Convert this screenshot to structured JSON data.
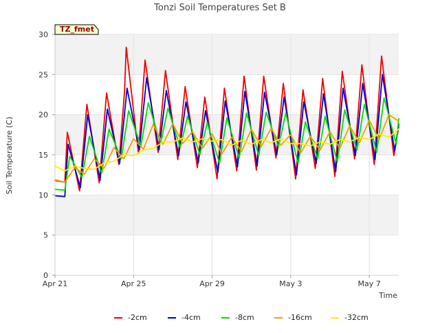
{
  "chart_data": {
    "type": "line",
    "title": "Tonzi Soil Temperatures Set B",
    "xlabel": "Time",
    "ylabel": "Soil Temperature (C)",
    "ylim": [
      0,
      30
    ],
    "xlim": [
      "2021-04-21",
      "2021-05-08 12:00"
    ],
    "x_ticks": [
      "2021-04-21",
      "2021-04-25",
      "2021-04-29",
      "2021-05-03",
      "2021-05-07"
    ],
    "x_tick_labels": [
      "Apr 21",
      "Apr 25",
      "Apr 29",
      "May 3",
      "May 7"
    ],
    "y_ticks": [
      0,
      5,
      10,
      15,
      20,
      25,
      30
    ],
    "y_tick_labels": [
      "0",
      "5",
      "10",
      "15",
      "20",
      "25",
      "30"
    ],
    "grid": true,
    "background_bands": true,
    "legend_placement": "bottom",
    "site_badge": "TZ_fmet",
    "x": [
      "2021-04-21 06:00",
      "2021-04-22 06:00",
      "2021-04-23 06:00",
      "2021-04-24 06:00",
      "2021-04-25 06:00",
      "2021-04-26 06:00",
      "2021-04-27 06:00",
      "2021-04-28 06:00",
      "2021-04-29 06:00",
      "2021-04-30 06:00",
      "2021-05-01 06:00",
      "2021-05-02 06:00",
      "2021-05-03 06:00",
      "2021-05-04 06:00",
      "2021-05-05 06:00",
      "2021-05-06 06:00",
      "2021-05-07 06:00",
      "2021-05-08 06:00"
    ],
    "series": [
      {
        "name": "-2cm",
        "color": "#ee0000",
        "x": [
          "2021-04-21 00:00",
          "2021-04-21 12:00",
          "2021-04-21 15:00",
          "2021-04-22 06:00",
          "2021-04-22 15:00",
          "2021-04-23 06:00",
          "2021-04-23 15:00",
          "2021-04-24 06:00",
          "2021-04-24 13:00",
          "2021-04-24 15:00",
          "2021-04-25 06:00",
          "2021-04-25 14:00",
          "2021-04-26 06:00",
          "2021-04-26 15:00",
          "2021-04-27 06:00",
          "2021-04-27 15:00",
          "2021-04-28 06:00",
          "2021-04-28 15:00",
          "2021-04-29 06:00",
          "2021-04-29 15:00",
          "2021-04-30 06:00",
          "2021-04-30 15:00",
          "2021-05-01 06:00",
          "2021-05-01 15:00",
          "2021-05-02 06:00",
          "2021-05-02 15:00",
          "2021-05-03 06:00",
          "2021-05-03 15:00",
          "2021-05-04 06:00",
          "2021-05-04 15:00",
          "2021-05-05 06:00",
          "2021-05-05 15:00",
          "2021-05-06 06:00",
          "2021-05-06 15:00",
          "2021-05-07 06:00",
          "2021-05-07 15:00",
          "2021-05-08 06:00",
          "2021-05-08 12:00"
        ],
        "y": [
          11.8,
          11.6,
          17.8,
          10.5,
          21.3,
          11.5,
          22.7,
          13.8,
          23.0,
          28.4,
          15.2,
          26.8,
          15.3,
          25.5,
          14.4,
          23.5,
          13.4,
          22.2,
          12.0,
          23.3,
          13.0,
          24.8,
          13.1,
          24.8,
          14.6,
          23.9,
          12.0,
          23.1,
          13.3,
          24.5,
          12.3,
          25.4,
          14.5,
          26.2,
          13.8,
          27.3,
          14.9,
          18.5
        ]
      },
      {
        "name": "-4cm",
        "color": "#0000cc",
        "x": [
          "2021-04-21 00:00",
          "2021-04-21 12:00",
          "2021-04-21 16:00",
          "2021-04-22 07:00",
          "2021-04-22 16:00",
          "2021-04-23 07:00",
          "2021-04-23 16:00",
          "2021-04-24 07:00",
          "2021-04-24 16:00",
          "2021-04-25 07:00",
          "2021-04-25 16:00",
          "2021-04-26 07:00",
          "2021-04-26 16:00",
          "2021-04-27 07:00",
          "2021-04-27 16:00",
          "2021-04-28 07:00",
          "2021-04-28 16:00",
          "2021-04-29 07:00",
          "2021-04-29 16:00",
          "2021-04-30 07:00",
          "2021-04-30 16:00",
          "2021-05-01 07:00",
          "2021-05-01 16:00",
          "2021-05-02 07:00",
          "2021-05-02 16:00",
          "2021-05-03 07:00",
          "2021-05-03 16:00",
          "2021-05-04 07:00",
          "2021-05-04 16:00",
          "2021-05-05 07:00",
          "2021-05-05 16:00",
          "2021-05-06 07:00",
          "2021-05-06 16:00",
          "2021-05-07 07:00",
          "2021-05-07 16:00",
          "2021-05-08 07:00",
          "2021-05-08 12:00"
        ],
        "y": [
          9.9,
          9.8,
          16.3,
          10.9,
          20.0,
          11.8,
          20.7,
          13.9,
          23.3,
          15.6,
          24.6,
          15.6,
          23.0,
          14.9,
          21.6,
          14.0,
          20.5,
          12.8,
          21.7,
          13.5,
          22.9,
          13.6,
          22.8,
          15.0,
          22.2,
          12.5,
          21.6,
          13.9,
          22.6,
          12.9,
          23.3,
          14.9,
          23.9,
          14.4,
          25.0,
          15.5,
          18.8
        ]
      },
      {
        "name": "-8cm",
        "color": "#00dd00",
        "x": [
          "2021-04-21 00:00",
          "2021-04-21 12:00",
          "2021-04-21 18:00",
          "2021-04-22 09:00",
          "2021-04-22 18:00",
          "2021-04-23 09:00",
          "2021-04-23 18:00",
          "2021-04-24 09:00",
          "2021-04-24 18:00",
          "2021-04-25 09:00",
          "2021-04-25 18:00",
          "2021-04-26 09:00",
          "2021-04-26 18:00",
          "2021-04-27 09:00",
          "2021-04-27 18:00",
          "2021-04-28 09:00",
          "2021-04-28 18:00",
          "2021-04-29 09:00",
          "2021-04-29 18:00",
          "2021-04-30 09:00",
          "2021-04-30 18:00",
          "2021-05-01 09:00",
          "2021-05-01 18:00",
          "2021-05-02 09:00",
          "2021-05-02 18:00",
          "2021-05-03 09:00",
          "2021-05-03 18:00",
          "2021-05-04 09:00",
          "2021-05-04 18:00",
          "2021-05-05 09:00",
          "2021-05-05 18:00",
          "2021-05-06 09:00",
          "2021-05-06 18:00",
          "2021-05-07 09:00",
          "2021-05-07 18:00",
          "2021-05-08 09:00",
          "2021-05-08 12:00"
        ],
        "y": [
          10.7,
          10.6,
          14.8,
          12.2,
          17.3,
          12.7,
          18.2,
          14.5,
          20.5,
          16.1,
          21.5,
          16.4,
          20.8,
          15.9,
          19.8,
          15.0,
          19.0,
          13.9,
          19.6,
          14.6,
          20.2,
          14.9,
          20.3,
          16.0,
          20.2,
          13.9,
          19.1,
          14.5,
          19.8,
          14.1,
          20.6,
          15.6,
          21.3,
          15.3,
          22.1,
          16.3,
          19.5
        ]
      },
      {
        "name": "-16cm",
        "color": "#f0a000",
        "x": [
          "2021-04-21 00:00",
          "2021-04-21 12:00",
          "2021-04-22 00:00",
          "2021-04-22 12:00",
          "2021-04-23 00:00",
          "2021-04-23 12:00",
          "2021-04-24 00:00",
          "2021-04-24 12:00",
          "2021-04-25 00:00",
          "2021-04-25 12:00",
          "2021-04-26 00:00",
          "2021-04-26 12:00",
          "2021-04-27 00:00",
          "2021-04-27 12:00",
          "2021-04-28 00:00",
          "2021-04-28 12:00",
          "2021-04-29 00:00",
          "2021-04-29 12:00",
          "2021-04-30 00:00",
          "2021-04-30 12:00",
          "2021-05-01 00:00",
          "2021-05-01 12:00",
          "2021-05-02 00:00",
          "2021-05-02 12:00",
          "2021-05-03 00:00",
          "2021-05-03 12:00",
          "2021-05-04 00:00",
          "2021-05-04 12:00",
          "2021-05-05 00:00",
          "2021-05-05 12:00",
          "2021-05-06 00:00",
          "2021-05-06 12:00",
          "2021-05-07 00:00",
          "2021-05-07 12:00",
          "2021-05-08 00:00",
          "2021-05-08 12:00"
        ],
        "y": [
          11.9,
          11.6,
          13.4,
          12.6,
          14.5,
          13.3,
          15.9,
          14.5,
          17.0,
          15.7,
          18.8,
          16.3,
          18.9,
          16.4,
          17.9,
          15.8,
          17.6,
          15.1,
          17.2,
          15.4,
          18.2,
          16.0,
          18.3,
          16.2,
          17.5,
          15.2,
          17.3,
          15.6,
          17.9,
          15.8,
          18.6,
          16.5,
          19.3,
          16.9,
          20.0,
          19.2
        ]
      },
      {
        "name": "-32cm",
        "color": "#ffee00",
        "x": [
          "2021-04-21 00:00",
          "2021-04-21 12:00",
          "2021-04-22 00:00",
          "2021-04-22 12:00",
          "2021-04-23 00:00",
          "2021-04-23 12:00",
          "2021-04-24 00:00",
          "2021-04-24 12:00",
          "2021-04-25 00:00",
          "2021-04-25 12:00",
          "2021-04-26 00:00",
          "2021-04-26 12:00",
          "2021-04-27 00:00",
          "2021-04-27 12:00",
          "2021-04-28 00:00",
          "2021-04-28 12:00",
          "2021-04-29 00:00",
          "2021-04-29 12:00",
          "2021-04-30 00:00",
          "2021-04-30 12:00",
          "2021-05-01 00:00",
          "2021-05-01 12:00",
          "2021-05-02 00:00",
          "2021-05-02 12:00",
          "2021-05-03 00:00",
          "2021-05-03 12:00",
          "2021-05-04 00:00",
          "2021-05-04 12:00",
          "2021-05-05 00:00",
          "2021-05-05 12:00",
          "2021-05-06 00:00",
          "2021-05-06 12:00",
          "2021-05-07 00:00",
          "2021-05-07 12:00",
          "2021-05-08 00:00",
          "2021-05-08 12:00"
        ],
        "y": [
          13.6,
          13.0,
          13.6,
          13.3,
          13.2,
          14.0,
          14.2,
          15.0,
          14.9,
          15.6,
          15.8,
          16.6,
          16.6,
          17.1,
          16.6,
          17.0,
          16.7,
          16.9,
          16.2,
          16.8,
          16.3,
          16.9,
          16.5,
          17.0,
          16.4,
          16.4,
          16.1,
          16.6,
          16.3,
          16.9,
          16.6,
          17.2,
          16.9,
          17.6,
          17.2,
          18.2
        ]
      }
    ]
  }
}
